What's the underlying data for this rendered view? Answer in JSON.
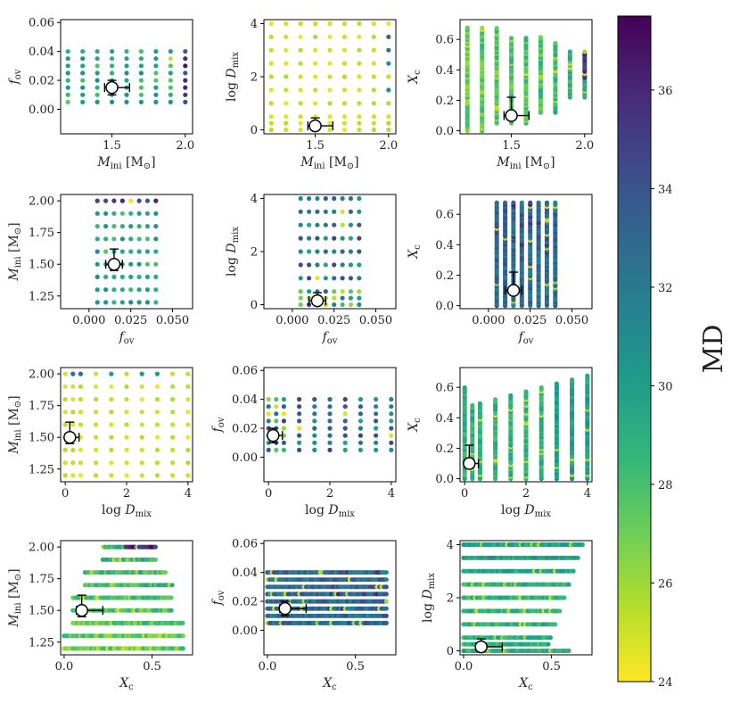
{
  "figure": {
    "colorbar_label": "MD"
  },
  "colorbar": {
    "vmin": 24,
    "vmax": 37.5,
    "ticks": [
      24,
      26,
      28,
      30,
      32,
      34,
      36
    ],
    "tick_labels": [
      "24",
      "26",
      "28",
      "30",
      "32",
      "34",
      "36"
    ],
    "colormap": [
      "#fde725",
      "#b5de2b",
      "#6ece58",
      "#35b779",
      "#1f9e89",
      "#26828e",
      "#31688e",
      "#3e4989",
      "#482878",
      "#440154"
    ]
  },
  "parameters": {
    "M": {
      "label": "M_ini [M_sun]",
      "lim": [
        1.15,
        2.05
      ],
      "ticks": [
        1.25,
        1.5,
        1.75,
        2.0
      ],
      "tick_labels": [
        "1.25",
        "1.50",
        "1.75",
        "2.00"
      ],
      "alt_ticks": [
        1.5,
        2.0
      ],
      "alt_tick_labels": [
        "1.5",
        "2.0"
      ],
      "grid": [
        1.2,
        1.3,
        1.4,
        1.5,
        1.6,
        1.7,
        1.8,
        1.9,
        2.0
      ],
      "best": 1.5,
      "err": [
        0.05,
        0.12
      ]
    },
    "f": {
      "label": "f_ov",
      "lim": [
        -0.017,
        0.062
      ],
      "ticks": [
        0.0,
        0.02,
        0.04,
        0.06
      ],
      "tick_labels": [
        "0.00",
        "0.02",
        "0.04",
        "0.06"
      ],
      "alt_ticks": [
        0.0,
        0.025,
        0.05
      ],
      "alt_tick_labels": [
        "0.000",
        "0.025",
        "0.050"
      ],
      "grid": [
        0.005,
        0.01,
        0.015,
        0.02,
        0.025,
        0.03,
        0.035,
        0.04
      ],
      "best": 0.015,
      "err": [
        0.005,
        0.005
      ]
    },
    "D": {
      "label": "log D_mix",
      "lim": [
        -0.15,
        4.15
      ],
      "ticks": [
        0,
        2,
        4
      ],
      "tick_labels": [
        "0",
        "2",
        "4"
      ],
      "grid": [
        0,
        0.25,
        0.5,
        1,
        1.5,
        2,
        2.5,
        3,
        3.5,
        4
      ],
      "best": 0.15,
      "err": [
        0.15,
        0.3
      ]
    },
    "X": {
      "label": "X_c",
      "lim": [
        -0.02,
        0.73
      ],
      "ticks": [
        0.0,
        0.2,
        0.4,
        0.6
      ],
      "tick_labels": [
        "0.0",
        "0.2",
        "0.4",
        "0.6"
      ],
      "alt_ticks": [
        0.0,
        0.5
      ],
      "alt_tick_labels": [
        "0.0",
        "0.5"
      ],
      "best": 0.1,
      "err": [
        0.03,
        0.12
      ]
    }
  },
  "chart_data": {
    "type": "scatter",
    "title": "",
    "layout": "4 x 3 grid of pairwise parameter scatter plots colour-coded by MD, white circle marks best model with error bars",
    "panels": [
      {
        "x": "M",
        "y": "f",
        "xlabel": "M_ini [M_sun]",
        "ylabel": "f_ov"
      },
      {
        "x": "M",
        "y": "D",
        "xlabel": "M_ini [M_sun]",
        "ylabel": "log D_mix"
      },
      {
        "x": "M",
        "y": "X",
        "xlabel": "M_ini [M_sun]",
        "ylabel": "X_c"
      },
      {
        "x": "f",
        "y": "M",
        "xlabel": "f_ov",
        "ylabel": "M_ini [M_sun]"
      },
      {
        "x": "f",
        "y": "D",
        "xlabel": "f_ov",
        "ylabel": "log D_mix"
      },
      {
        "x": "f",
        "y": "X",
        "xlabel": "f_ov",
        "ylabel": "X_c"
      },
      {
        "x": "D",
        "y": "M",
        "xlabel": "log D_mix",
        "ylabel": "M_ini [M_sun]"
      },
      {
        "x": "D",
        "y": "f",
        "xlabel": "log D_mix",
        "ylabel": "f_ov"
      },
      {
        "x": "D",
        "y": "X",
        "xlabel": "log D_mix",
        "ylabel": "X_c"
      },
      {
        "x": "X",
        "y": "M",
        "xlabel": "X_c",
        "ylabel": "M_ini [M_sun]"
      },
      {
        "x": "X",
        "y": "f",
        "xlabel": "X_c",
        "ylabel": "f_ov"
      },
      {
        "x": "X",
        "y": "D",
        "xlabel": "X_c",
        "ylabel": "log D_mix"
      }
    ],
    "best_model": {
      "M_ini": 1.5,
      "f_ov": 0.015,
      "log_D_mix": 0.15,
      "X_c": 0.1
    },
    "md_range": [
      24,
      37.5
    ]
  }
}
